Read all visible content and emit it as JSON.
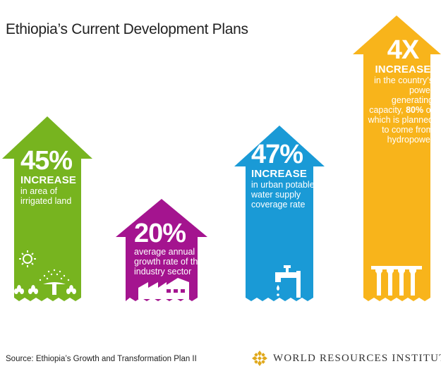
{
  "title": "Ethiopia’s Current Development Plans",
  "colors": {
    "green": "#77b41f",
    "magenta": "#a4148f",
    "blue": "#1a9ad6",
    "yellow": "#f8b41b",
    "wri_logo": "#e0a81a"
  },
  "arrows": [
    {
      "value": "45%",
      "headline": "INCREASE",
      "lines": [
        "in area of",
        "irrigated land"
      ],
      "icon": "irrigation-icon"
    },
    {
      "value": "20%",
      "lines": [
        "average annual",
        "growth rate of the",
        "industry sector"
      ],
      "icon": "factory-icon"
    },
    {
      "value": "47%",
      "headline": "INCREASE",
      "lines": [
        "in urban potable",
        "water supply",
        "coverage rate"
      ],
      "icon": "water-tap-icon"
    },
    {
      "value": "4X",
      "headline": "INCREASE",
      "lines_pre": [
        "in the country’s",
        "power generating",
        "capacity, "
      ],
      "bold_value": "80%",
      "lines_post": [
        " of",
        "which is planned",
        "to come from",
        "hydropower"
      ],
      "icon": "hydropower-dam-icon"
    }
  ],
  "source": "Source: Ethiopia’s Growth and Transformation Plan II",
  "logo": {
    "name": "WORLD RESOURCES INSTITUTE"
  }
}
